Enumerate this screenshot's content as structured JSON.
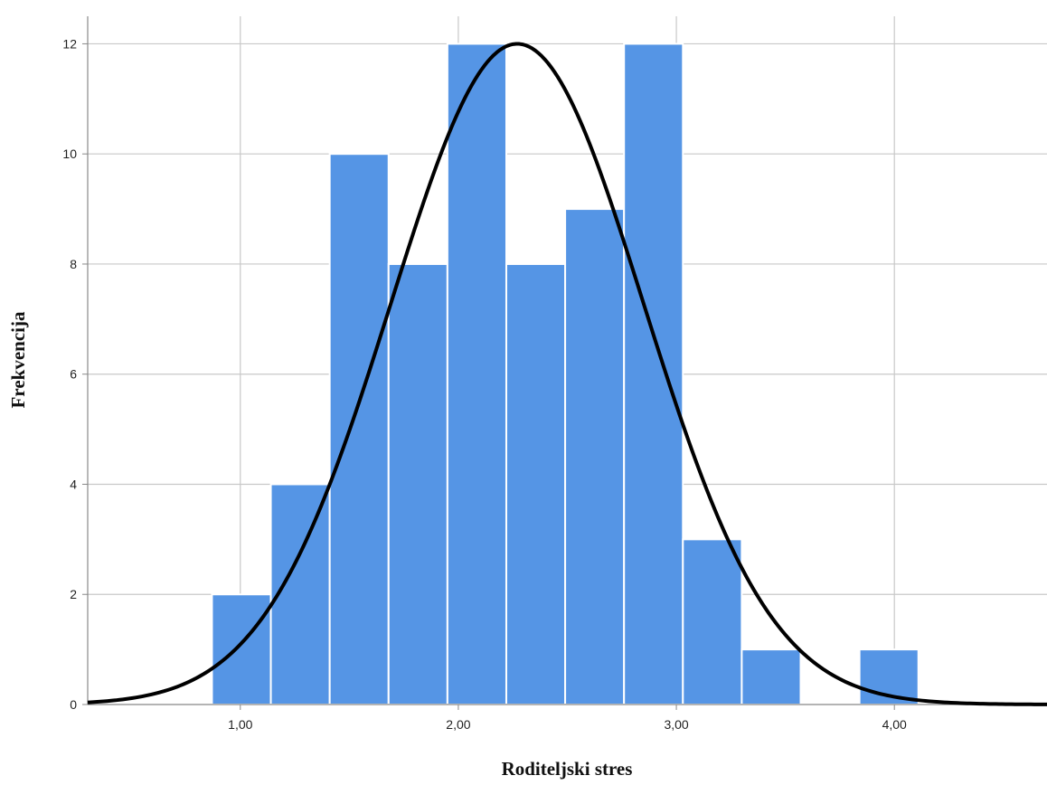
{
  "chart_data": {
    "type": "bar",
    "title": "",
    "xlabel": "Roditeljski stres",
    "ylabel": "Frekvencija",
    "xlim": [
      0.3,
      4.7
    ],
    "ylim": [
      0,
      12.5
    ],
    "x_ticks": [
      {
        "value": 1,
        "label": "1,00"
      },
      {
        "value": 2,
        "label": "2,00"
      },
      {
        "value": 3,
        "label": "3,00"
      },
      {
        "value": 4,
        "label": "4,00"
      }
    ],
    "y_ticks": [
      {
        "value": 0,
        "label": "0"
      },
      {
        "value": 2,
        "label": "2"
      },
      {
        "value": 4,
        "label": "4"
      },
      {
        "value": 6,
        "label": "6"
      },
      {
        "value": 8,
        "label": "8"
      },
      {
        "value": 10,
        "label": "10"
      },
      {
        "value": 12,
        "label": "12"
      }
    ],
    "bins": [
      {
        "x0": 0.87,
        "x1": 1.14,
        "value": 2
      },
      {
        "x0": 1.14,
        "x1": 1.41,
        "value": 4
      },
      {
        "x0": 1.41,
        "x1": 1.68,
        "value": 10
      },
      {
        "x0": 1.68,
        "x1": 1.95,
        "value": 8
      },
      {
        "x0": 1.95,
        "x1": 2.22,
        "value": 12
      },
      {
        "x0": 2.22,
        "x1": 2.49,
        "value": 8
      },
      {
        "x0": 2.49,
        "x1": 2.76,
        "value": 9
      },
      {
        "x0": 2.76,
        "x1": 3.03,
        "value": 12
      },
      {
        "x0": 3.03,
        "x1": 3.3,
        "value": 3
      },
      {
        "x0": 3.3,
        "x1": 3.57,
        "value": 1
      },
      {
        "x0": 3.57,
        "x1": 3.84,
        "value": 0
      },
      {
        "x0": 3.84,
        "x1": 4.11,
        "value": 1
      }
    ],
    "normal_curve": {
      "mean": 2.27,
      "sd": 0.58,
      "peak": 12
    },
    "grid": true,
    "legend": "none",
    "colors": {
      "bar": "#5595e5",
      "bar_edge": "#ffffff",
      "curve": "#000000",
      "grid": "#c8c8c8",
      "axis": "#888888"
    }
  }
}
